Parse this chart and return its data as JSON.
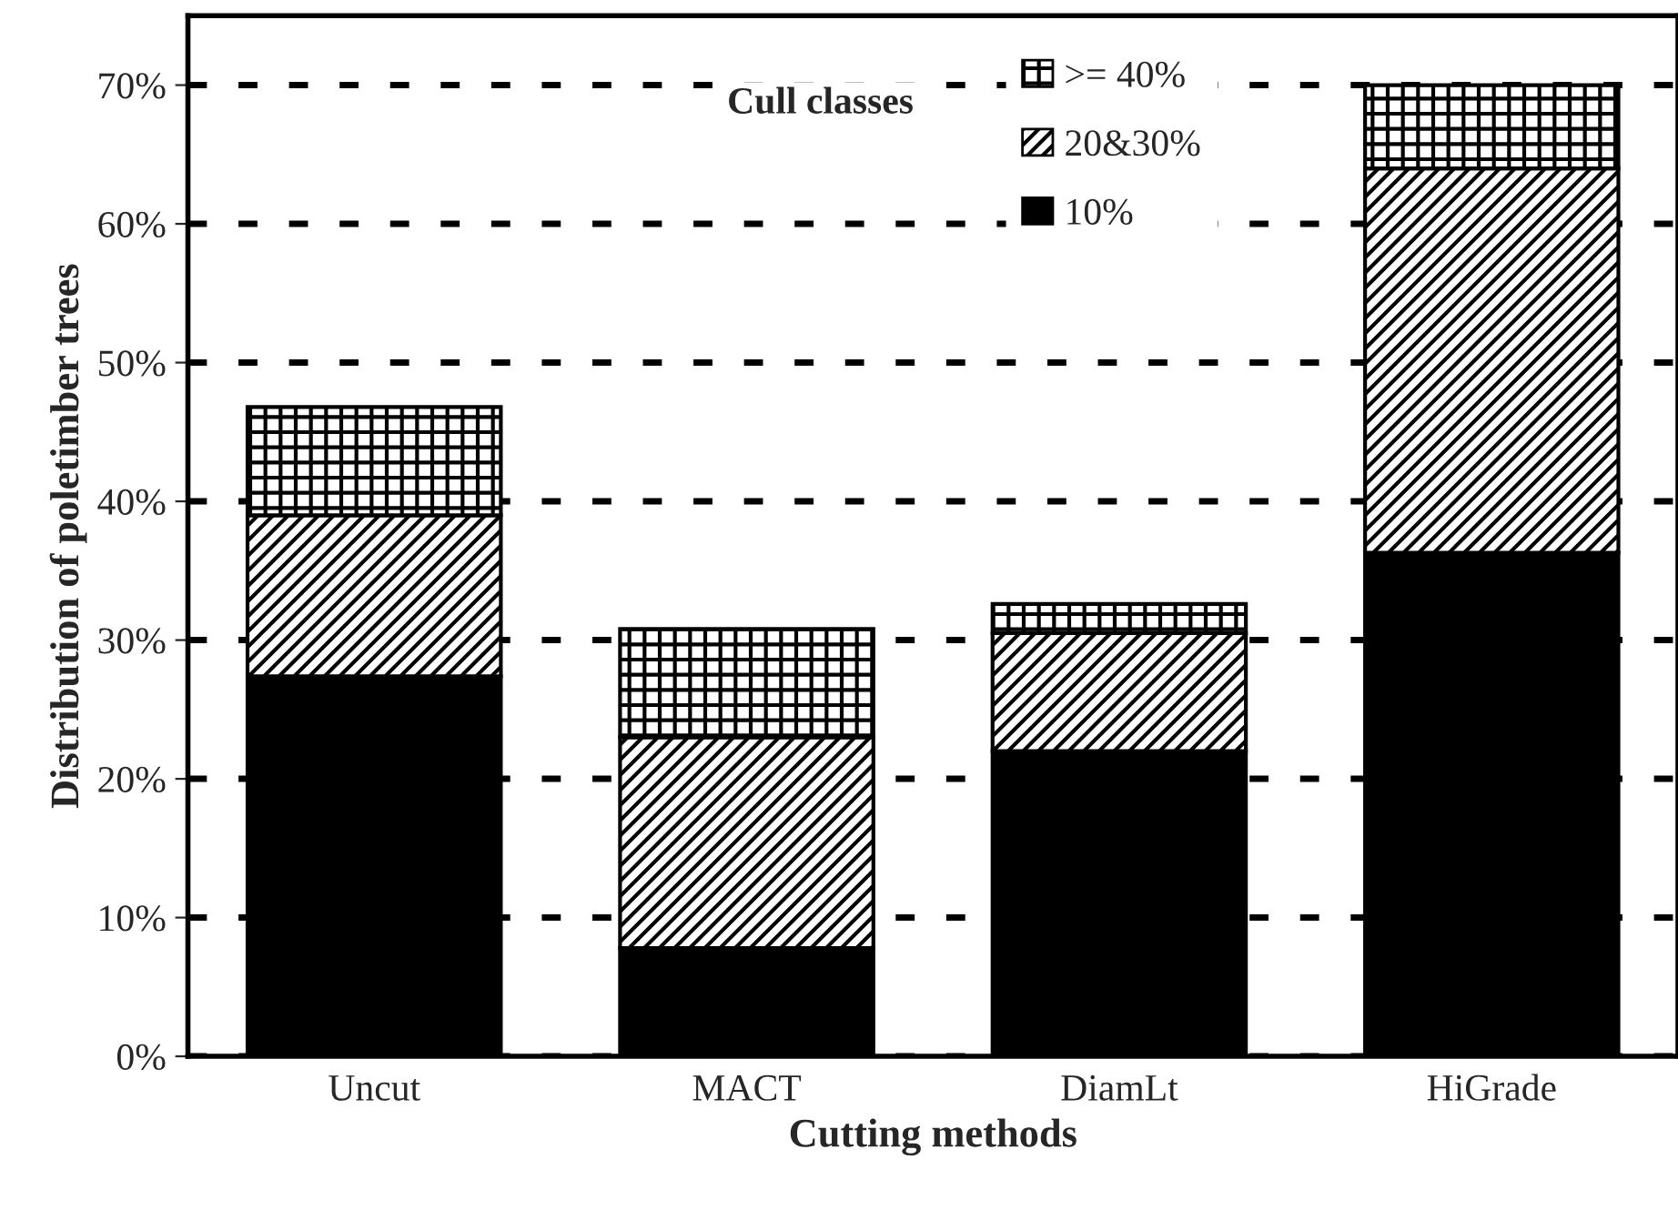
{
  "chart_data": {
    "type": "bar",
    "stacked": true,
    "xlabel": "Cutting methods",
    "ylabel": "Distribution of poletimber trees",
    "legend_title": "Cull classes",
    "categories": [
      "Uncut",
      "MACT",
      "DiamLt",
      "HiGrade"
    ],
    "series": [
      {
        "name": "10%",
        "color": "#000000",
        "values": [
          27.4,
          7.8,
          22.0,
          36.3
        ]
      },
      {
        "name": "20&30%",
        "color": "#000000",
        "values": [
          11.6,
          15.2,
          8.5,
          27.7
        ]
      },
      {
        "name": ">= 40%",
        "color": "#000000",
        "values": [
          7.8,
          7.8,
          2.1,
          6.0
        ]
      }
    ],
    "ylim": [
      0,
      75
    ],
    "yticks": [
      {
        "value": 0,
        "label": "0%"
      },
      {
        "value": 10,
        "label": "10%"
      },
      {
        "value": 20,
        "label": "20%"
      },
      {
        "value": 30,
        "label": "30%"
      },
      {
        "value": 40,
        "label": "40%"
      },
      {
        "value": 50,
        "label": "50%"
      },
      {
        "value": 60,
        "label": "60%"
      },
      {
        "value": 70,
        "label": "70%"
      }
    ],
    "grid": "y",
    "legend": "top"
  }
}
